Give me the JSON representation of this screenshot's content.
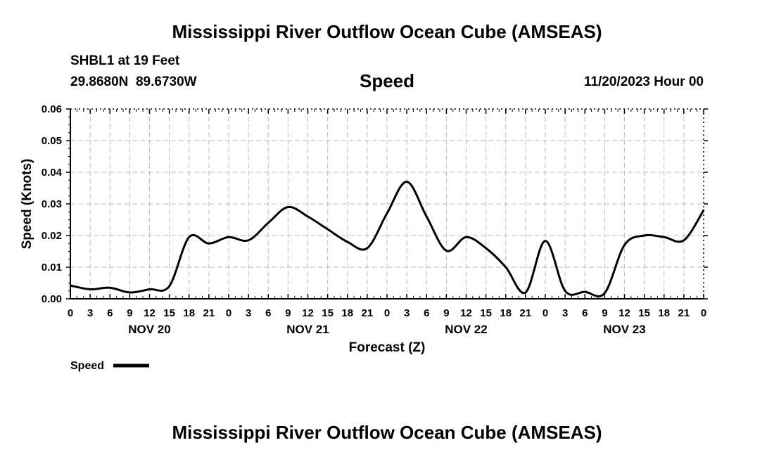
{
  "header": {
    "title": "Mississippi River Outflow Ocean Cube (AMSEAS)",
    "station": "SHBL1 at 19 Feet",
    "coords": "29.8680N  89.6730W",
    "subtitle": "Speed",
    "datetime": "11/20/2023 Hour 00"
  },
  "footer": {
    "title": "Mississippi River Outflow Ocean Cube (AMSEAS)"
  },
  "chart_data": {
    "type": "line",
    "title": "Speed",
    "xlabel": "Forecast (Z)",
    "ylabel": "Speed (Knots)",
    "xlim": [
      0,
      96
    ],
    "ylim": [
      0,
      0.06
    ],
    "grid": true,
    "x_tick_labels": [
      "0",
      "3",
      "6",
      "9",
      "12",
      "15",
      "18",
      "21",
      "0",
      "3",
      "6",
      "9",
      "12",
      "15",
      "18",
      "21",
      "0",
      "3",
      "6",
      "9",
      "12",
      "15",
      "18",
      "21",
      "0",
      "3",
      "6",
      "9",
      "12",
      "15",
      "18",
      "21",
      "0"
    ],
    "y_ticks": [
      0,
      0.01,
      0.02,
      0.03,
      0.04,
      0.05,
      0.06
    ],
    "y_tick_labels": [
      "0.00",
      "0.01",
      "0.02",
      "0.03",
      "0.04",
      "0.05",
      "0.06"
    ],
    "day_labels": [
      {
        "hour": 12,
        "label": "NOV 20"
      },
      {
        "hour": 36,
        "label": "NOV 21"
      },
      {
        "hour": 60,
        "label": "NOV 22"
      },
      {
        "hour": 84,
        "label": "NOV 23"
      }
    ],
    "legend": "Speed",
    "series": [
      {
        "name": "Speed",
        "x": [
          0,
          3,
          6,
          9,
          12,
          15,
          18,
          21,
          24,
          27,
          30,
          33,
          36,
          39,
          42,
          45,
          48,
          51,
          54,
          57,
          60,
          63,
          66,
          69,
          72,
          75,
          78,
          81,
          84,
          87,
          90,
          93,
          96
        ],
        "values": [
          0.0042,
          0.003,
          0.0035,
          0.002,
          0.003,
          0.004,
          0.0195,
          0.0175,
          0.0195,
          0.0185,
          0.024,
          0.029,
          0.026,
          0.022,
          0.018,
          0.016,
          0.027,
          0.037,
          0.026,
          0.0152,
          0.0195,
          0.016,
          0.01,
          0.002,
          0.0183,
          0.0025,
          0.0022,
          0.0018,
          0.017,
          0.02,
          0.0195,
          0.0185,
          0.028
        ]
      }
    ]
  }
}
